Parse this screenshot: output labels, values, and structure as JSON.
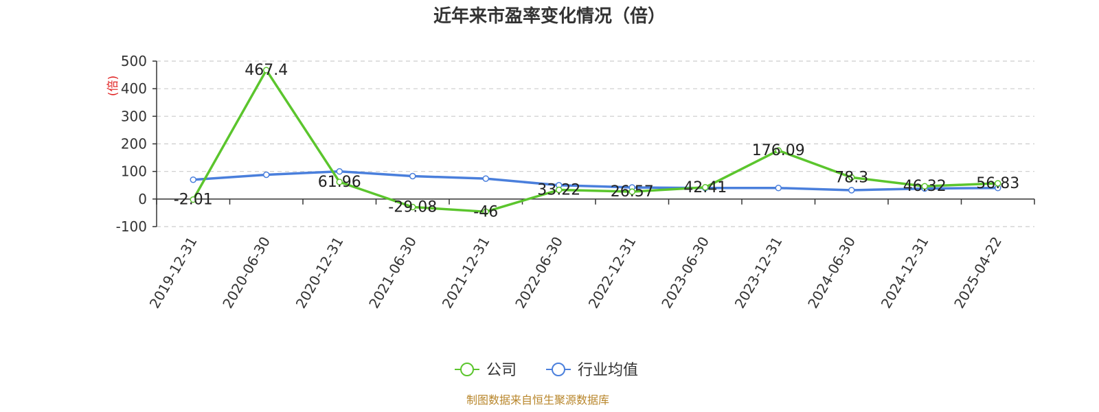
{
  "chart_data": {
    "type": "line",
    "title": "近年来市盈率变化情况（倍）",
    "ylabel": "(倍)",
    "xlabel": "",
    "ylim": [
      -100,
      500
    ],
    "yticks": [
      -100,
      0,
      100,
      200,
      300,
      400,
      500
    ],
    "grid": true,
    "legend_position": "bottom",
    "categories": [
      "2019-12-31",
      "2020-06-30",
      "2020-12-31",
      "2021-06-30",
      "2021-12-31",
      "2022-06-30",
      "2022-12-31",
      "2023-06-30",
      "2023-12-31",
      "2024-06-30",
      "2024-12-31",
      "2025-04-22"
    ],
    "series": [
      {
        "name": "公司",
        "color": "#5bc52d",
        "values": [
          -2.01,
          467.4,
          61.96,
          -29.08,
          -46,
          33.22,
          26.57,
          42.41,
          176.09,
          78.3,
          46.32,
          56.83
        ],
        "labels": [
          "-2.01",
          "467.4",
          "61.96",
          "-29.08",
          "-46",
          "33.22",
          "26.57",
          "42.41",
          "176.09",
          "78.3",
          "46.32",
          "56.83"
        ]
      },
      {
        "name": "行业均值",
        "color": "#4a7fdc",
        "values": [
          70,
          88,
          100,
          83,
          74,
          50,
          42,
          40,
          40,
          32,
          38,
          40
        ]
      }
    ],
    "source": "制图数据来自恒生聚源数据库"
  }
}
